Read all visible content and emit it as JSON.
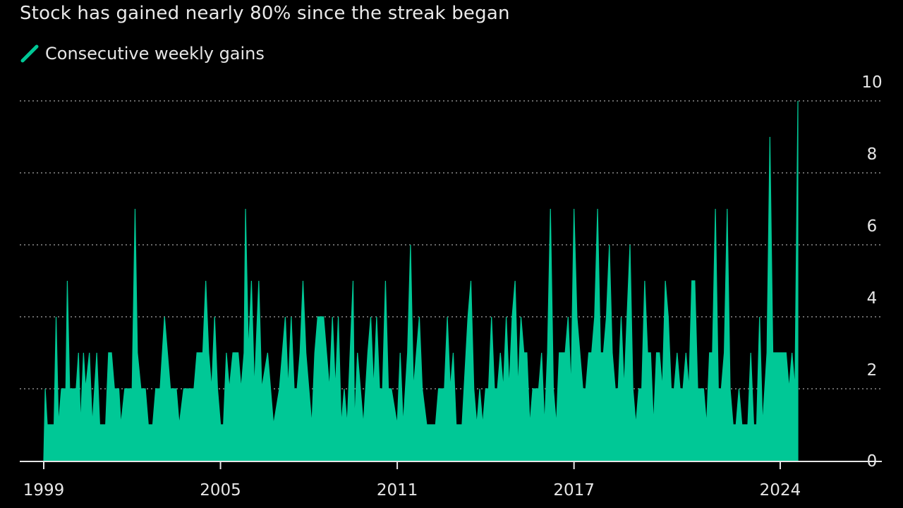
{
  "chart_data": {
    "type": "area",
    "subtitle": "Stock has gained nearly 80% since the streak began",
    "title": "",
    "xlabel": "",
    "ylabel": "",
    "legend": {
      "entries": [
        "Consecutive weekly gains"
      ],
      "placement": "top-left"
    },
    "series": [
      {
        "name": "Consecutive weekly gains",
        "color": "#00c896",
        "points": [
          [
            1999.0,
            0
          ],
          [
            1999.05,
            2
          ],
          [
            1999.12,
            1
          ],
          [
            1999.35,
            1
          ],
          [
            1999.42,
            4
          ],
          [
            1999.5,
            1
          ],
          [
            1999.6,
            2
          ],
          [
            1999.75,
            2
          ],
          [
            1999.8,
            5
          ],
          [
            1999.88,
            2
          ],
          [
            2000.1,
            2
          ],
          [
            2000.18,
            3
          ],
          [
            2000.25,
            1
          ],
          [
            2000.35,
            3
          ],
          [
            2000.42,
            2
          ],
          [
            2000.55,
            3
          ],
          [
            2000.65,
            1
          ],
          [
            2000.8,
            3
          ],
          [
            2000.9,
            1
          ],
          [
            2001.0,
            1
          ],
          [
            2001.1,
            1
          ],
          [
            2001.2,
            3
          ],
          [
            2001.3,
            3
          ],
          [
            2001.4,
            2
          ],
          [
            2001.55,
            2
          ],
          [
            2001.62,
            1
          ],
          [
            2001.75,
            2
          ],
          [
            2002.0,
            2
          ],
          [
            2002.1,
            7
          ],
          [
            2002.18,
            3
          ],
          [
            2002.3,
            2
          ],
          [
            2002.45,
            2
          ],
          [
            2002.55,
            1
          ],
          [
            2002.7,
            1
          ],
          [
            2002.8,
            2
          ],
          [
            2002.95,
            2
          ],
          [
            2003.1,
            4
          ],
          [
            2003.2,
            3
          ],
          [
            2003.3,
            2
          ],
          [
            2003.5,
            2
          ],
          [
            2003.6,
            1
          ],
          [
            2003.75,
            2
          ],
          [
            2003.9,
            2
          ],
          [
            2004.1,
            2
          ],
          [
            2004.2,
            3
          ],
          [
            2004.4,
            3
          ],
          [
            2004.5,
            5
          ],
          [
            2004.6,
            3
          ],
          [
            2004.7,
            2
          ],
          [
            2004.8,
            4
          ],
          [
            2004.9,
            2
          ],
          [
            2005.0,
            1
          ],
          [
            2005.1,
            1
          ],
          [
            2005.2,
            3
          ],
          [
            2005.3,
            2
          ],
          [
            2005.42,
            3
          ],
          [
            2005.5,
            3
          ],
          [
            2005.6,
            3
          ],
          [
            2005.7,
            2
          ],
          [
            2005.8,
            3
          ],
          [
            2005.85,
            7
          ],
          [
            2005.95,
            3
          ],
          [
            2006.05,
            5
          ],
          [
            2006.15,
            2
          ],
          [
            2006.3,
            5
          ],
          [
            2006.4,
            2
          ],
          [
            2006.6,
            3
          ],
          [
            2006.7,
            2
          ],
          [
            2006.8,
            1
          ],
          [
            2007.0,
            2
          ],
          [
            2007.1,
            3
          ],
          [
            2007.2,
            4
          ],
          [
            2007.3,
            2
          ],
          [
            2007.4,
            4
          ],
          [
            2007.5,
            2
          ],
          [
            2007.6,
            2
          ],
          [
            2007.7,
            3
          ],
          [
            2007.8,
            5
          ],
          [
            2007.9,
            3
          ],
          [
            2008.0,
            2
          ],
          [
            2008.1,
            1
          ],
          [
            2008.2,
            3
          ],
          [
            2008.3,
            4
          ],
          [
            2008.4,
            4
          ],
          [
            2008.5,
            4
          ],
          [
            2008.6,
            3
          ],
          [
            2008.7,
            2
          ],
          [
            2008.8,
            4
          ],
          [
            2008.9,
            2
          ],
          [
            2009.0,
            4
          ],
          [
            2009.1,
            1
          ],
          [
            2009.2,
            2
          ],
          [
            2009.3,
            1
          ],
          [
            2009.5,
            5
          ],
          [
            2009.55,
            1
          ],
          [
            2009.65,
            3
          ],
          [
            2009.75,
            2
          ],
          [
            2009.85,
            1
          ],
          [
            2010.0,
            3
          ],
          [
            2010.1,
            4
          ],
          [
            2010.2,
            2
          ],
          [
            2010.3,
            4
          ],
          [
            2010.4,
            2
          ],
          [
            2010.5,
            2
          ],
          [
            2010.6,
            5
          ],
          [
            2010.7,
            2
          ],
          [
            2010.8,
            2
          ],
          [
            2011.0,
            1
          ],
          [
            2011.1,
            3
          ],
          [
            2011.2,
            1
          ],
          [
            2011.35,
            3
          ],
          [
            2011.45,
            6
          ],
          [
            2011.55,
            2
          ],
          [
            2011.65,
            3
          ],
          [
            2011.75,
            4
          ],
          [
            2011.85,
            2
          ],
          [
            2012.0,
            1
          ],
          [
            2012.3,
            1
          ],
          [
            2012.4,
            2
          ],
          [
            2012.5,
            2
          ],
          [
            2012.6,
            2
          ],
          [
            2012.7,
            4
          ],
          [
            2012.8,
            2
          ],
          [
            2012.9,
            3
          ],
          [
            2013.0,
            1
          ],
          [
            2013.1,
            1
          ],
          [
            2013.2,
            1
          ],
          [
            2013.4,
            4
          ],
          [
            2013.5,
            5
          ],
          [
            2013.6,
            2
          ],
          [
            2013.7,
            1
          ],
          [
            2013.8,
            2
          ],
          [
            2013.9,
            1
          ],
          [
            2014.0,
            2
          ],
          [
            2014.1,
            2
          ],
          [
            2014.2,
            4
          ],
          [
            2014.3,
            2
          ],
          [
            2014.4,
            2
          ],
          [
            2014.5,
            3
          ],
          [
            2014.6,
            2
          ],
          [
            2014.7,
            4
          ],
          [
            2014.8,
            2
          ],
          [
            2014.9,
            4
          ],
          [
            2015.0,
            5
          ],
          [
            2015.1,
            2
          ],
          [
            2015.2,
            4
          ],
          [
            2015.3,
            3
          ],
          [
            2015.4,
            3
          ],
          [
            2015.5,
            1
          ],
          [
            2015.6,
            2
          ],
          [
            2015.8,
            2
          ],
          [
            2015.9,
            3
          ],
          [
            2016.0,
            1
          ],
          [
            2016.1,
            3
          ],
          [
            2016.2,
            7
          ],
          [
            2016.3,
            2
          ],
          [
            2016.4,
            1
          ],
          [
            2016.5,
            3
          ],
          [
            2016.6,
            3
          ],
          [
            2016.7,
            3
          ],
          [
            2016.8,
            4
          ],
          [
            2016.9,
            2
          ],
          [
            2017.0,
            7
          ],
          [
            2017.1,
            4
          ],
          [
            2017.2,
            3
          ],
          [
            2017.3,
            2
          ],
          [
            2017.4,
            2
          ],
          [
            2017.5,
            3
          ],
          [
            2017.6,
            3
          ],
          [
            2017.7,
            4
          ],
          [
            2017.8,
            7
          ],
          [
            2017.9,
            3
          ],
          [
            2018.0,
            3
          ],
          [
            2018.1,
            4
          ],
          [
            2018.2,
            6
          ],
          [
            2018.3,
            3
          ],
          [
            2018.4,
            2
          ],
          [
            2018.5,
            2
          ],
          [
            2018.6,
            4
          ],
          [
            2018.7,
            2
          ],
          [
            2018.8,
            4
          ],
          [
            2018.9,
            6
          ],
          [
            2019.0,
            2
          ],
          [
            2019.1,
            1
          ],
          [
            2019.2,
            2
          ],
          [
            2019.3,
            2
          ],
          [
            2019.4,
            5
          ],
          [
            2019.5,
            3
          ],
          [
            2019.6,
            3
          ],
          [
            2019.7,
            1
          ],
          [
            2019.8,
            3
          ],
          [
            2019.9,
            3
          ],
          [
            2020.0,
            2
          ],
          [
            2020.1,
            5
          ],
          [
            2020.2,
            4
          ],
          [
            2020.3,
            2
          ],
          [
            2020.4,
            2
          ],
          [
            2020.5,
            3
          ],
          [
            2020.6,
            2
          ],
          [
            2020.7,
            2
          ],
          [
            2020.8,
            3
          ],
          [
            2020.9,
            2
          ],
          [
            2021.0,
            5
          ],
          [
            2021.1,
            5
          ],
          [
            2021.2,
            2
          ],
          [
            2021.3,
            2
          ],
          [
            2021.4,
            2
          ],
          [
            2021.5,
            1
          ],
          [
            2021.6,
            3
          ],
          [
            2021.7,
            3
          ],
          [
            2021.8,
            7
          ],
          [
            2021.9,
            2
          ],
          [
            2022.0,
            2
          ],
          [
            2022.1,
            3
          ],
          [
            2022.2,
            7
          ],
          [
            2022.3,
            2
          ],
          [
            2022.4,
            1
          ],
          [
            2022.5,
            1
          ],
          [
            2022.6,
            2
          ],
          [
            2022.7,
            1
          ],
          [
            2022.8,
            1
          ],
          [
            2022.9,
            1
          ],
          [
            2023.0,
            3
          ],
          [
            2023.1,
            1
          ],
          [
            2023.2,
            1
          ],
          [
            2023.3,
            4
          ],
          [
            2023.4,
            1
          ],
          [
            2023.55,
            3
          ],
          [
            2023.65,
            9
          ],
          [
            2023.75,
            3
          ],
          [
            2023.85,
            3
          ],
          [
            2023.95,
            3
          ],
          [
            2024.0,
            3
          ],
          [
            2024.1,
            3
          ],
          [
            2024.2,
            3
          ],
          [
            2024.3,
            2
          ],
          [
            2024.4,
            3
          ],
          [
            2024.5,
            2
          ],
          [
            2024.6,
            10
          ]
        ]
      }
    ],
    "x_ticks": [
      1999,
      2005,
      2011,
      2017,
      2024
    ],
    "x_range": [
      1999,
      2026.3
    ],
    "y_ticks": [
      0,
      2,
      4,
      6,
      8,
      10
    ],
    "ylim": [
      0,
      10
    ],
    "y_axis_side": "right",
    "grid": "horizontal dotted"
  }
}
